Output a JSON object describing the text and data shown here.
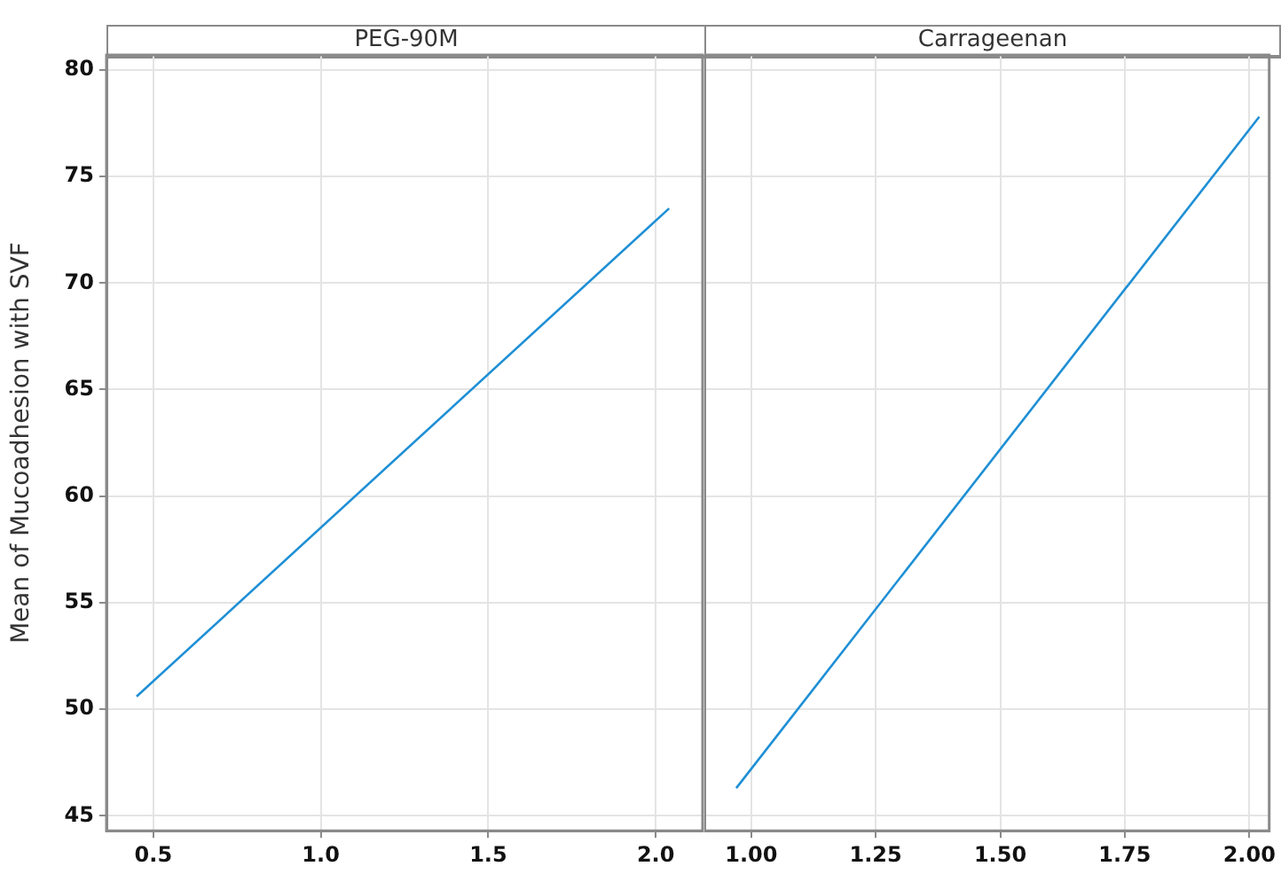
{
  "chart_data": [
    {
      "type": "line",
      "title": "PEG-90M",
      "ylabel": "Mean of Mucoadhesion with SVF",
      "x": [
        0.45,
        2.04
      ],
      "series": [
        {
          "color": "#1e8fd5",
          "values": [
            50.6,
            73.5
          ]
        }
      ],
      "xlim": [
        0.36,
        2.14
      ],
      "xticks": [
        0.5,
        {
          "value": 1,
          "label": "1.0"
        },
        1.5,
        {
          "value": 2,
          "label": "2.0"
        }
      ],
      "ylim": [
        44.3,
        80.7
      ],
      "yticks": [
        45,
        50,
        55,
        60,
        65,
        70,
        75,
        80
      ],
      "grid": true
    },
    {
      "type": "line",
      "title": "Carrageenan",
      "x": [
        0.97,
        2.02
      ],
      "series": [
        {
          "color": "#1e8fd5",
          "values": [
            46.3,
            77.8
          ]
        }
      ],
      "xlim": [
        0.906,
        2.04
      ],
      "xticks": [
        {
          "value": 1,
          "label": "1.00"
        },
        1.25,
        {
          "value": 1.5,
          "label": "1.50"
        },
        1.75,
        {
          "value": 2,
          "label": "2.00"
        }
      ],
      "ylim": [
        44.3,
        80.7
      ],
      "yticks": [
        45,
        50,
        55,
        60,
        65,
        70,
        75,
        80
      ],
      "grid": true,
      "tick_labels": "x"
    }
  ]
}
